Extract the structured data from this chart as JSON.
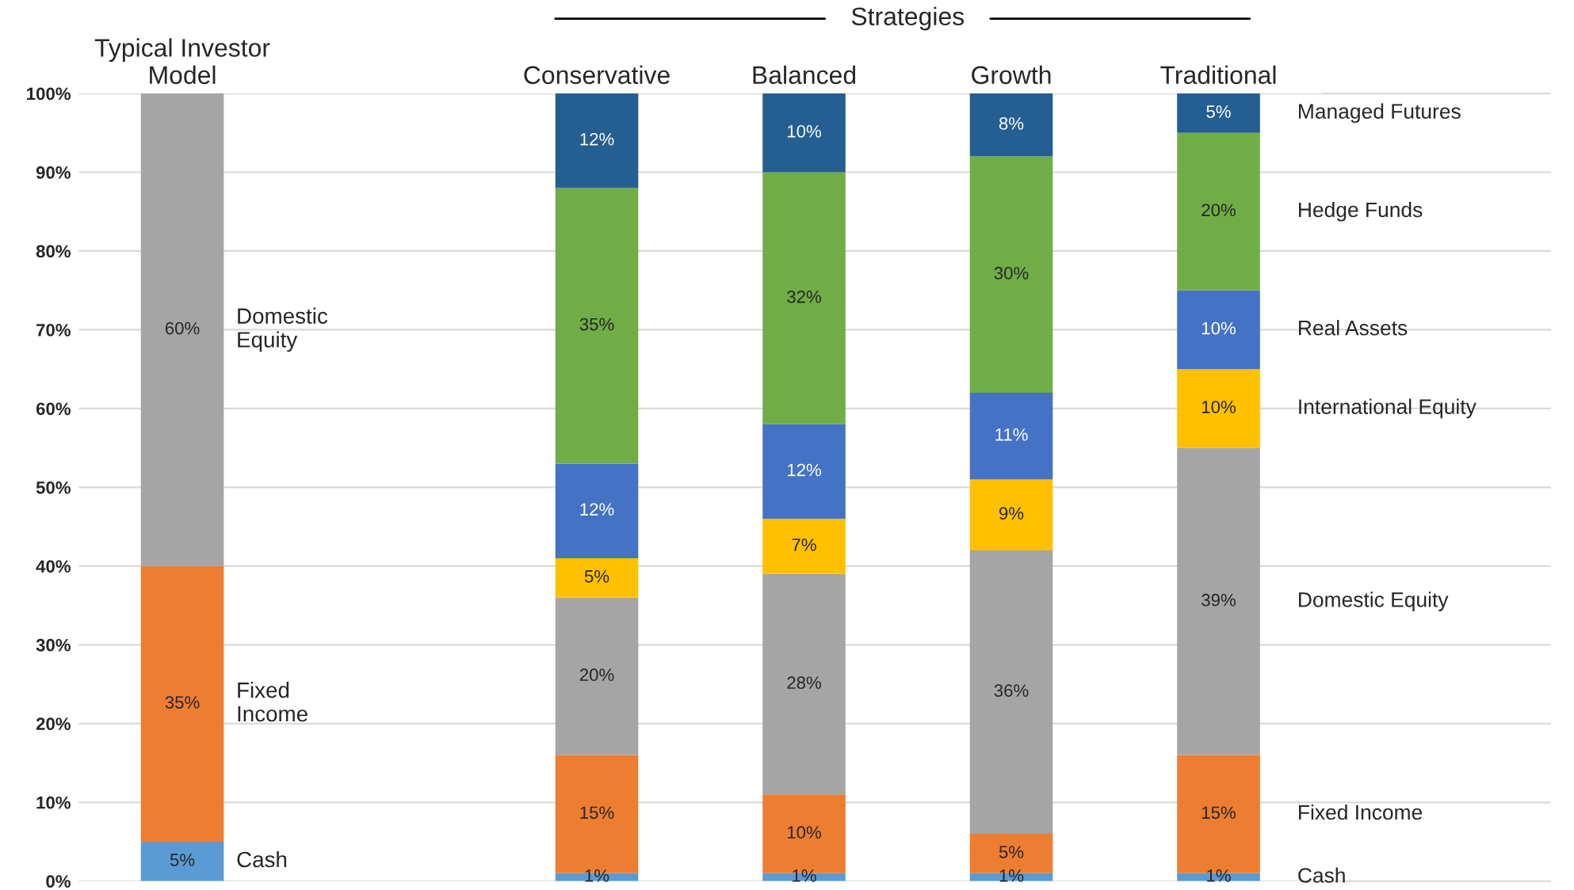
{
  "chart_data": {
    "type": "bar",
    "stacked": true,
    "categories": [
      "Typical Investor\nModel",
      null,
      "Conservative",
      "Balanced",
      "Growth",
      "Traditional"
    ],
    "series": [
      {
        "name": "Cash",
        "color": "#5b9bd5",
        "values": [
          5,
          null,
          1,
          1,
          1,
          1
        ],
        "value_labels": [
          "5%",
          null,
          "1%",
          "1%",
          "1%",
          "1%"
        ]
      },
      {
        "name": "Fixed Income",
        "color": "#ed7d31",
        "values": [
          35,
          null,
          15,
          10,
          5,
          15
        ],
        "value_labels": [
          "35%",
          null,
          "15%",
          "10%",
          "5%",
          "15%"
        ]
      },
      {
        "name": "Domestic Equity",
        "color": "#a5a5a5",
        "values": [
          60,
          null,
          20,
          28,
          36,
          39
        ],
        "value_labels": [
          "60%",
          null,
          "20%",
          "28%",
          "36%",
          "39%"
        ]
      },
      {
        "name": "International Equity",
        "color": "#ffc000",
        "values": [
          null,
          null,
          5,
          7,
          9,
          10
        ],
        "value_labels": [
          null,
          null,
          "5%",
          "7%",
          "9%",
          "10%"
        ]
      },
      {
        "name": "Real Assets",
        "color": "#4472c4",
        "values": [
          null,
          null,
          12,
          12,
          11,
          10
        ],
        "value_labels": [
          null,
          null,
          "12%",
          "12%",
          "11%",
          "10%"
        ]
      },
      {
        "name": "Hedge Funds",
        "color": "#70ad47",
        "values": [
          null,
          null,
          35,
          32,
          30,
          20
        ],
        "value_labels": [
          null,
          null,
          "35%",
          "32%",
          "30%",
          "20%"
        ]
      },
      {
        "name": "Managed Futures",
        "color": "#255e91",
        "values": [
          null,
          null,
          12,
          10,
          8,
          5
        ],
        "value_labels": [
          null,
          null,
          "12%",
          "10%",
          "8%",
          "5%"
        ]
      }
    ],
    "ylim": [
      0,
      100
    ],
    "yticks": [
      {
        "value": 0,
        "label": "0%"
      },
      {
        "value": 10,
        "label": "10%"
      },
      {
        "value": 20,
        "label": "20%"
      },
      {
        "value": 30,
        "label": "30%"
      },
      {
        "value": 40,
        "label": "40%"
      },
      {
        "value": 50,
        "label": "50%"
      },
      {
        "value": 60,
        "label": "60%"
      },
      {
        "value": 70,
        "label": "70%"
      },
      {
        "value": 80,
        "label": "80%"
      },
      {
        "value": 90,
        "label": "90%"
      },
      {
        "value": 100,
        "label": "100%"
      }
    ],
    "grid": "y",
    "legend": false,
    "annotations": [
      "Strategies",
      "Cash",
      "Fixed\nIncome",
      "Domestic\nEquity"
    ]
  }
}
